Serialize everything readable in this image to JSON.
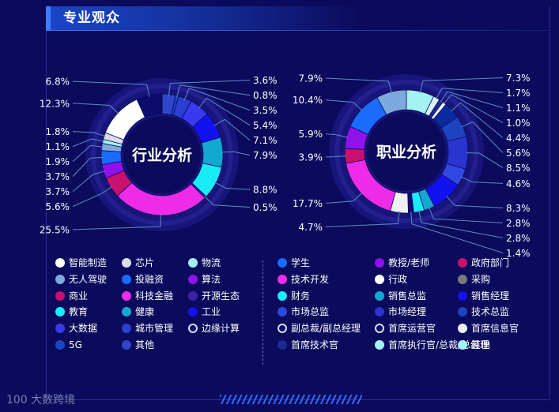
{
  "header": {
    "title": "专业观众"
  },
  "watermark": "100 大数跨境",
  "colors": {
    "background": "#0b0a5c",
    "accent": "#3d7dff",
    "label_line": "#5d8dc0"
  },
  "chart_data": [
    {
      "type": "pie",
      "title": "行业分析",
      "slices": [
        {
          "label": "其他",
          "value": 3.6,
          "color": "#2e46c9"
        },
        {
          "label": "5G",
          "value": 0.8,
          "color": "#1a47c4"
        },
        {
          "label": "城市管理",
          "value": 3.5,
          "color": "#2b3fd2"
        },
        {
          "label": "大数据",
          "value": 5.4,
          "color": "#3939ee"
        },
        {
          "label": "工业",
          "value": 7.1,
          "color": "#1212f0"
        },
        {
          "label": "健康",
          "value": 7.9,
          "color": "#13a8cf"
        },
        {
          "label": "教育",
          "value": 8.8,
          "color": "#19ecf6"
        },
        {
          "label": "开源生态",
          "value": 0.5,
          "color": "#3a22a8"
        },
        {
          "label": "科技金融",
          "value": 25.5,
          "color": "#ee2ce8"
        },
        {
          "label": "商业",
          "value": 5.6,
          "color": "#c8106e"
        },
        {
          "label": "算法",
          "value": 3.7,
          "color": "#8f12ea"
        },
        {
          "label": "投融资",
          "value": 3.7,
          "color": "#1a6cff"
        },
        {
          "label": "无人驾驶",
          "value": 1.9,
          "color": "#7ea9dd"
        },
        {
          "label": "物流",
          "value": 1.1,
          "color": "#a5f2f5"
        },
        {
          "label": "芯片",
          "value": 1.8,
          "color": "#dcdce8"
        },
        {
          "label": "智能制造",
          "value": 12.3,
          "color": "#ffffff"
        },
        {
          "label": "边缘计算",
          "value": 6.8,
          "color": "#0c0b6e"
        }
      ]
    },
    {
      "type": "pie",
      "title": "职业分析",
      "slices": [
        {
          "label": "其他",
          "value": 7.3,
          "color": "#a5f2f5"
        },
        {
          "label": "首席执行官/总裁/总经理",
          "value": 1.7,
          "color": "#d8f4f7"
        },
        {
          "label": "首席技术官",
          "value": 1.1,
          "color": "#1d2a8c"
        },
        {
          "label": "首席信息官",
          "value": 1.0,
          "color": "#eceef6"
        },
        {
          "label": "首席运营官",
          "value": 4.4,
          "color": "#0a2ba0"
        },
        {
          "label": "副总裁/副总经理",
          "value": 5.6,
          "color": "#1d44c0"
        },
        {
          "label": "技术总监",
          "value": 8.5,
          "color": "#2a34cf"
        },
        {
          "label": "市场经理",
          "value": 4.6,
          "color": "#3048e0"
        },
        {
          "label": "市场总监",
          "value": 8.3,
          "color": "#1212f0"
        },
        {
          "label": "销售经理",
          "value": 2.8,
          "color": "#13a8cf"
        },
        {
          "label": "销售总监",
          "value": 2.8,
          "color": "#19ecf6"
        },
        {
          "label": "财务",
          "value": 1.4,
          "color": "#0c0b6e"
        },
        {
          "label": "采购",
          "value": 4.7,
          "color": "#f0f0f0"
        },
        {
          "label": "技术开发",
          "value": 17.7,
          "color": "#ee2ce8"
        },
        {
          "label": "政府部门",
          "value": 3.9,
          "color": "#c8106e"
        },
        {
          "label": "教授/老师",
          "value": 5.9,
          "color": "#8f12ea"
        },
        {
          "label": "学生",
          "value": 10.4,
          "color": "#1a6cff"
        },
        {
          "label": "行政",
          "value": 7.9,
          "color": "#7ea9dd"
        }
      ]
    }
  ],
  "legend_left": [
    {
      "label": "智能制造",
      "color": "#ffffff"
    },
    {
      "label": "芯片",
      "color": "#dcdce8"
    },
    {
      "label": "物流",
      "color": "#a5f2f5"
    },
    {
      "label": "无人驾驶",
      "color": "#7ea9dd"
    },
    {
      "label": "投融资",
      "color": "#1a6cff"
    },
    {
      "label": "算法",
      "color": "#8f12ea"
    },
    {
      "label": "商业",
      "color": "#c8106e"
    },
    {
      "label": "科技金融",
      "color": "#ee2ce8"
    },
    {
      "label": "开源生态",
      "color": "#3a22a8"
    },
    {
      "label": "教育",
      "color": "#19ecf6"
    },
    {
      "label": "健康",
      "color": "#13a8cf"
    },
    {
      "label": "工业",
      "color": "#1212f0"
    },
    {
      "label": "大数据",
      "color": "#3939ee"
    },
    {
      "label": "城市管理",
      "color": "#2b3fd2"
    },
    {
      "label": "边缘计算",
      "color": "#0c0b6e",
      "outline": true
    },
    {
      "label": "5G",
      "color": "#1a47c4"
    },
    {
      "label": "其他",
      "color": "#2e46c9"
    }
  ],
  "legend_right": [
    {
      "label": "学生",
      "color": "#1a6cff"
    },
    {
      "label": "教授/老师",
      "color": "#8f12ea"
    },
    {
      "label": "政府部门",
      "color": "#c8106e"
    },
    {
      "label": "技术开发",
      "color": "#ee2ce8"
    },
    {
      "label": "行政",
      "color": "#ffffff"
    },
    {
      "label": "采购",
      "color": "#7a7a7a"
    },
    {
      "label": "财务",
      "color": "#19ecf6"
    },
    {
      "label": "销售总监",
      "color": "#13a8cf"
    },
    {
      "label": "销售经理",
      "color": "#1212f0"
    },
    {
      "label": "市场总监",
      "color": "#3048e0"
    },
    {
      "label": "市场经理",
      "color": "#2a34cf"
    },
    {
      "label": "技术总监",
      "color": "#1d44c0"
    },
    {
      "label": "副总裁/副总经理",
      "color": "#0c0b6e",
      "outline": true
    },
    {
      "label": "首席运营官",
      "color": "#0c0b6e",
      "outline": true
    },
    {
      "label": "首席信息官",
      "color": "#eceef6"
    },
    {
      "label": "首席技术官",
      "color": "#1d2a8c"
    },
    {
      "label": "首席执行官/总裁/总经理",
      "color": "#a5f2f5"
    },
    {
      "label": "其他",
      "color": "#a5f2f5"
    }
  ]
}
